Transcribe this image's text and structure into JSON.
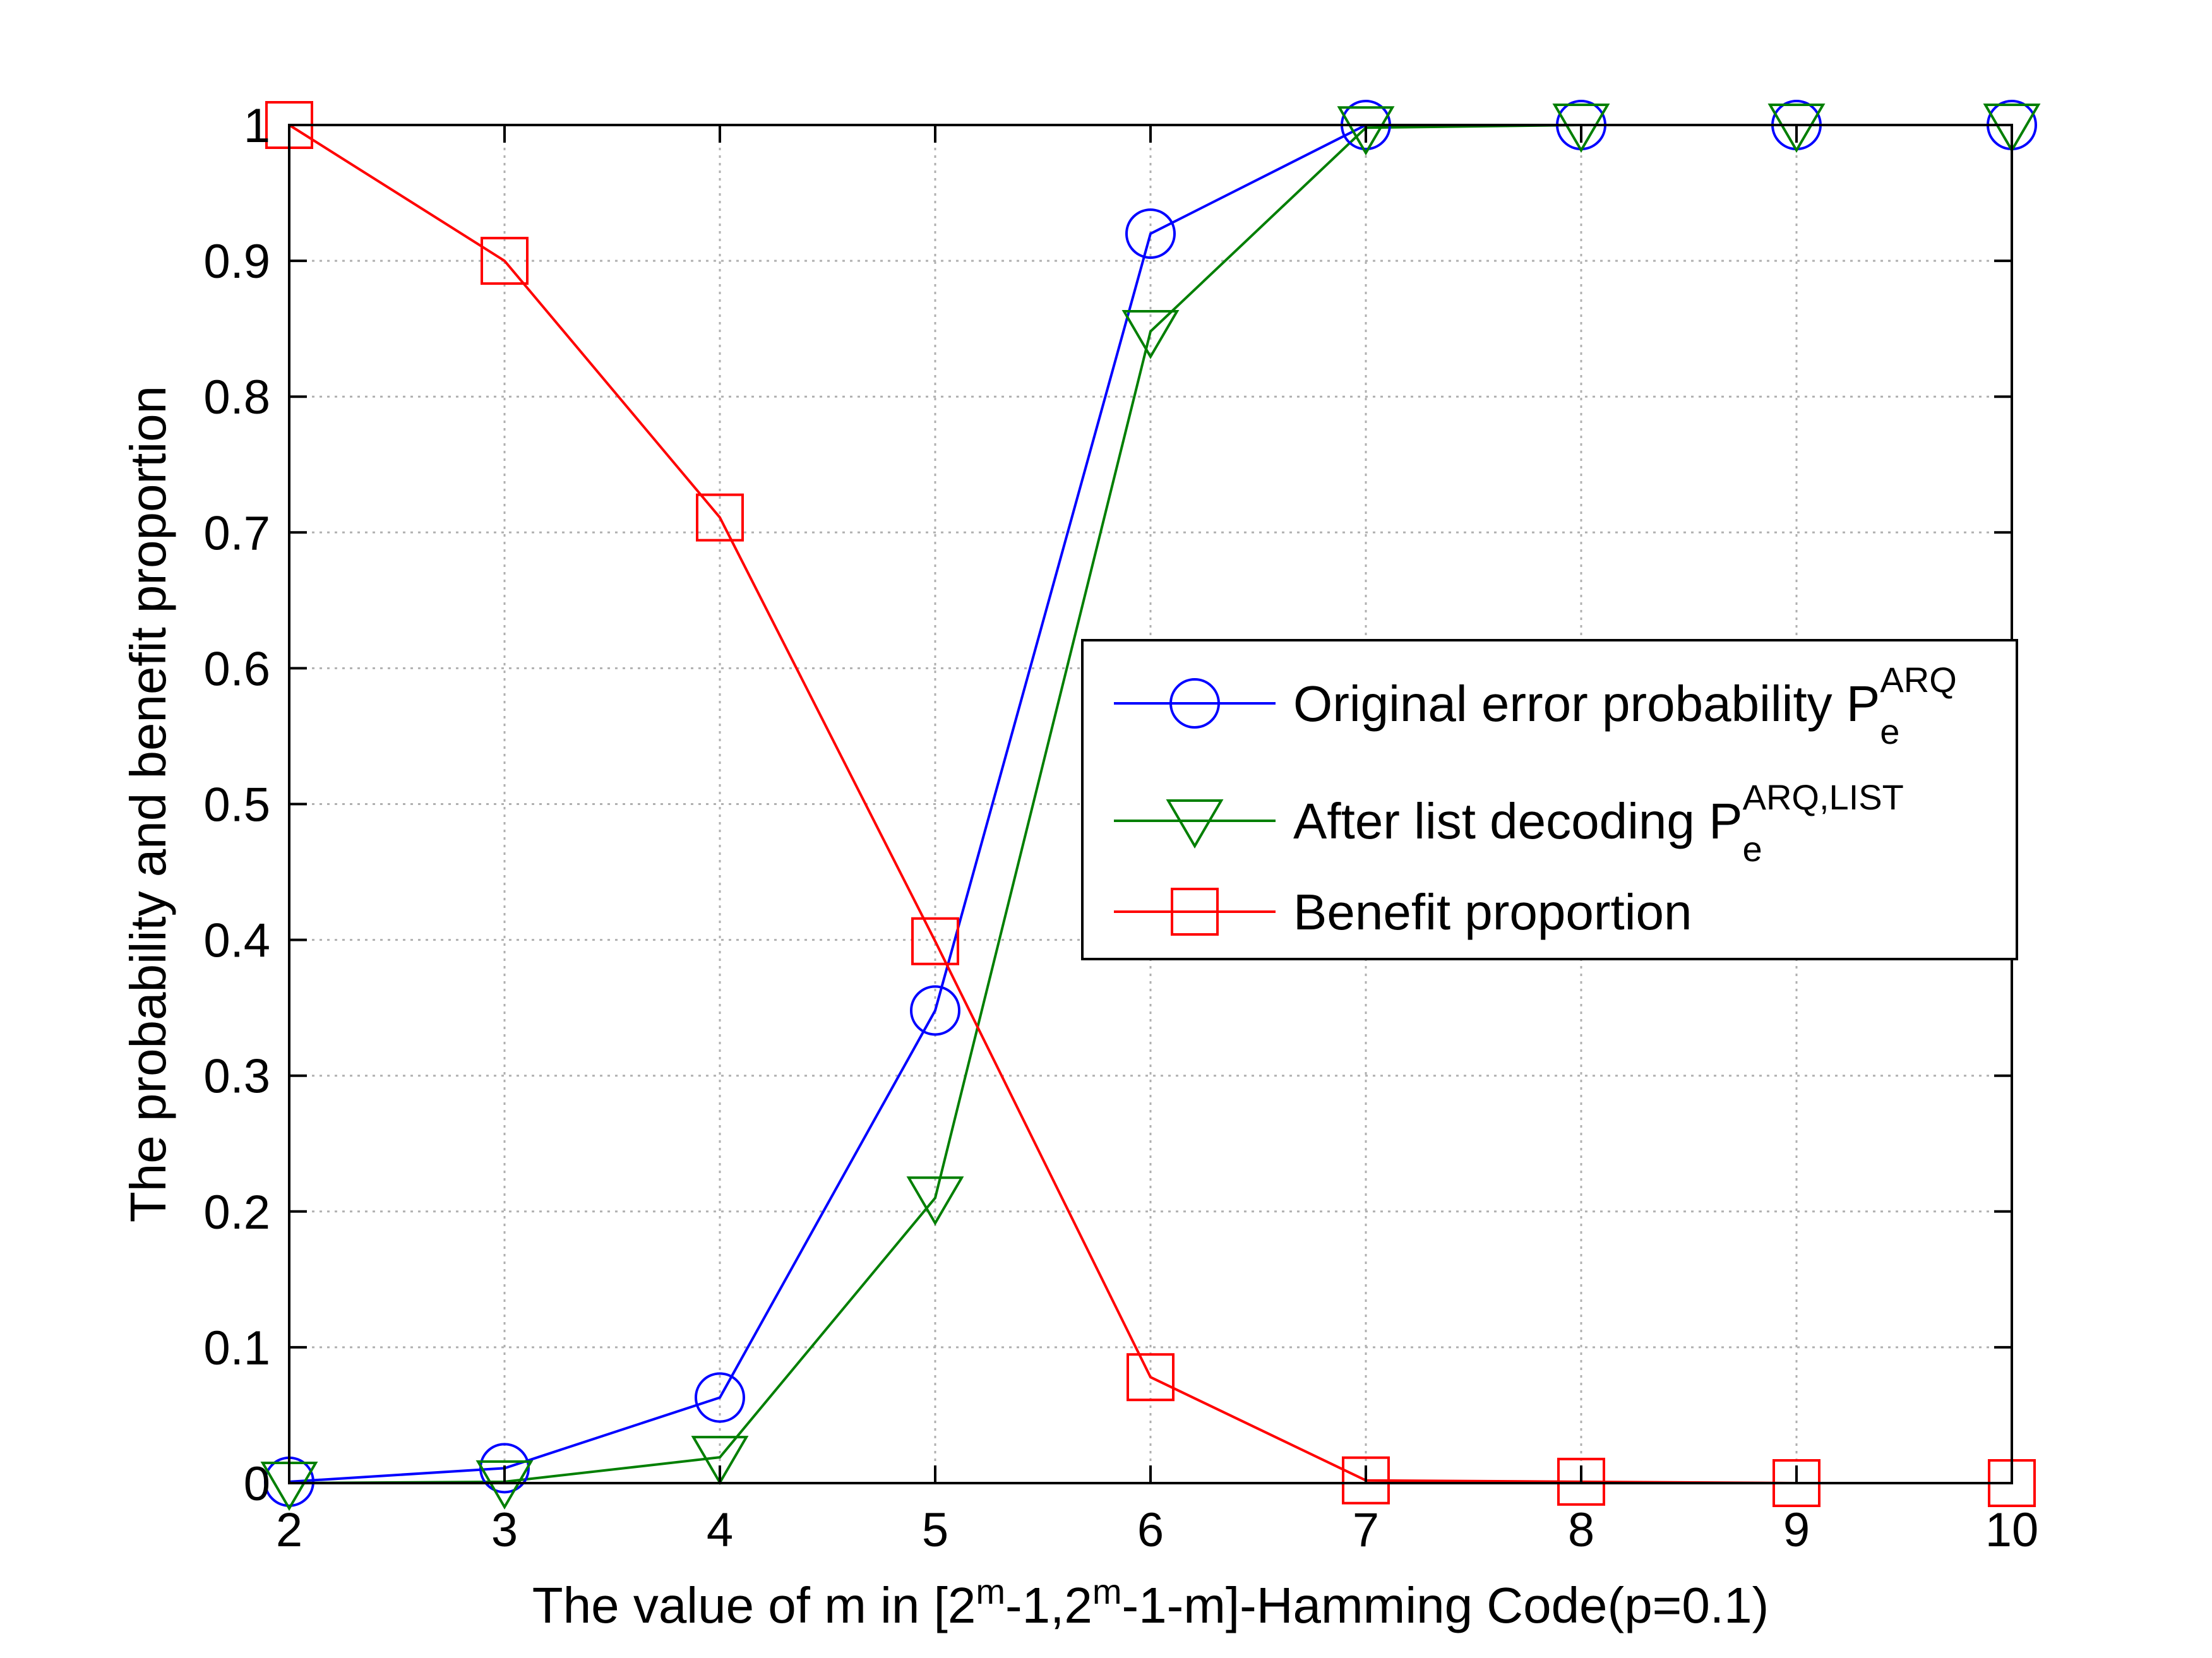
{
  "chart_data": {
    "type": "line",
    "title": "",
    "xlabel": {
      "prefix": "The value of m in [2",
      "sup1": "m",
      "mid": "-1,2",
      "sup2": "m",
      "suffix": "-1-m]-Hamming Code(p=0.1)"
    },
    "ylabel": "The probability and benefit proportion",
    "x": [
      2,
      3,
      4,
      5,
      6,
      7,
      8,
      9,
      10
    ],
    "xlim": [
      2,
      10
    ],
    "ylim": [
      0,
      1
    ],
    "xticks": [
      "2",
      "3",
      "4",
      "5",
      "6",
      "7",
      "8",
      "9",
      "10"
    ],
    "yticks": [
      "0",
      "0.1",
      "0.2",
      "0.3",
      "0.4",
      "0.5",
      "0.6",
      "0.7",
      "0.8",
      "0.9",
      "1"
    ],
    "grid": true,
    "legend_position": "center-right",
    "series": [
      {
        "name": "Original error probability P",
        "sub": "e",
        "sup": "ARQ",
        "color": "#0000ff",
        "marker": "circle",
        "values": [
          0.001,
          0.011,
          0.063,
          0.348,
          0.92,
          1.0,
          1.0,
          1.0,
          1.0
        ]
      },
      {
        "name": "After list decoding P",
        "sub": "e",
        "sup": "ARQ,LIST",
        "color": "#007f00",
        "marker": "triangle-down",
        "values": [
          0.0,
          0.001,
          0.019,
          0.21,
          0.848,
          0.998,
          1.0,
          1.0,
          1.0
        ]
      },
      {
        "name": "Benefit proportion",
        "sub": "",
        "sup": "",
        "color": "#ff0000",
        "marker": "square",
        "values": [
          1.0,
          0.9,
          0.711,
          0.399,
          0.078,
          0.002,
          0.001,
          0.0,
          0.0
        ]
      }
    ]
  }
}
